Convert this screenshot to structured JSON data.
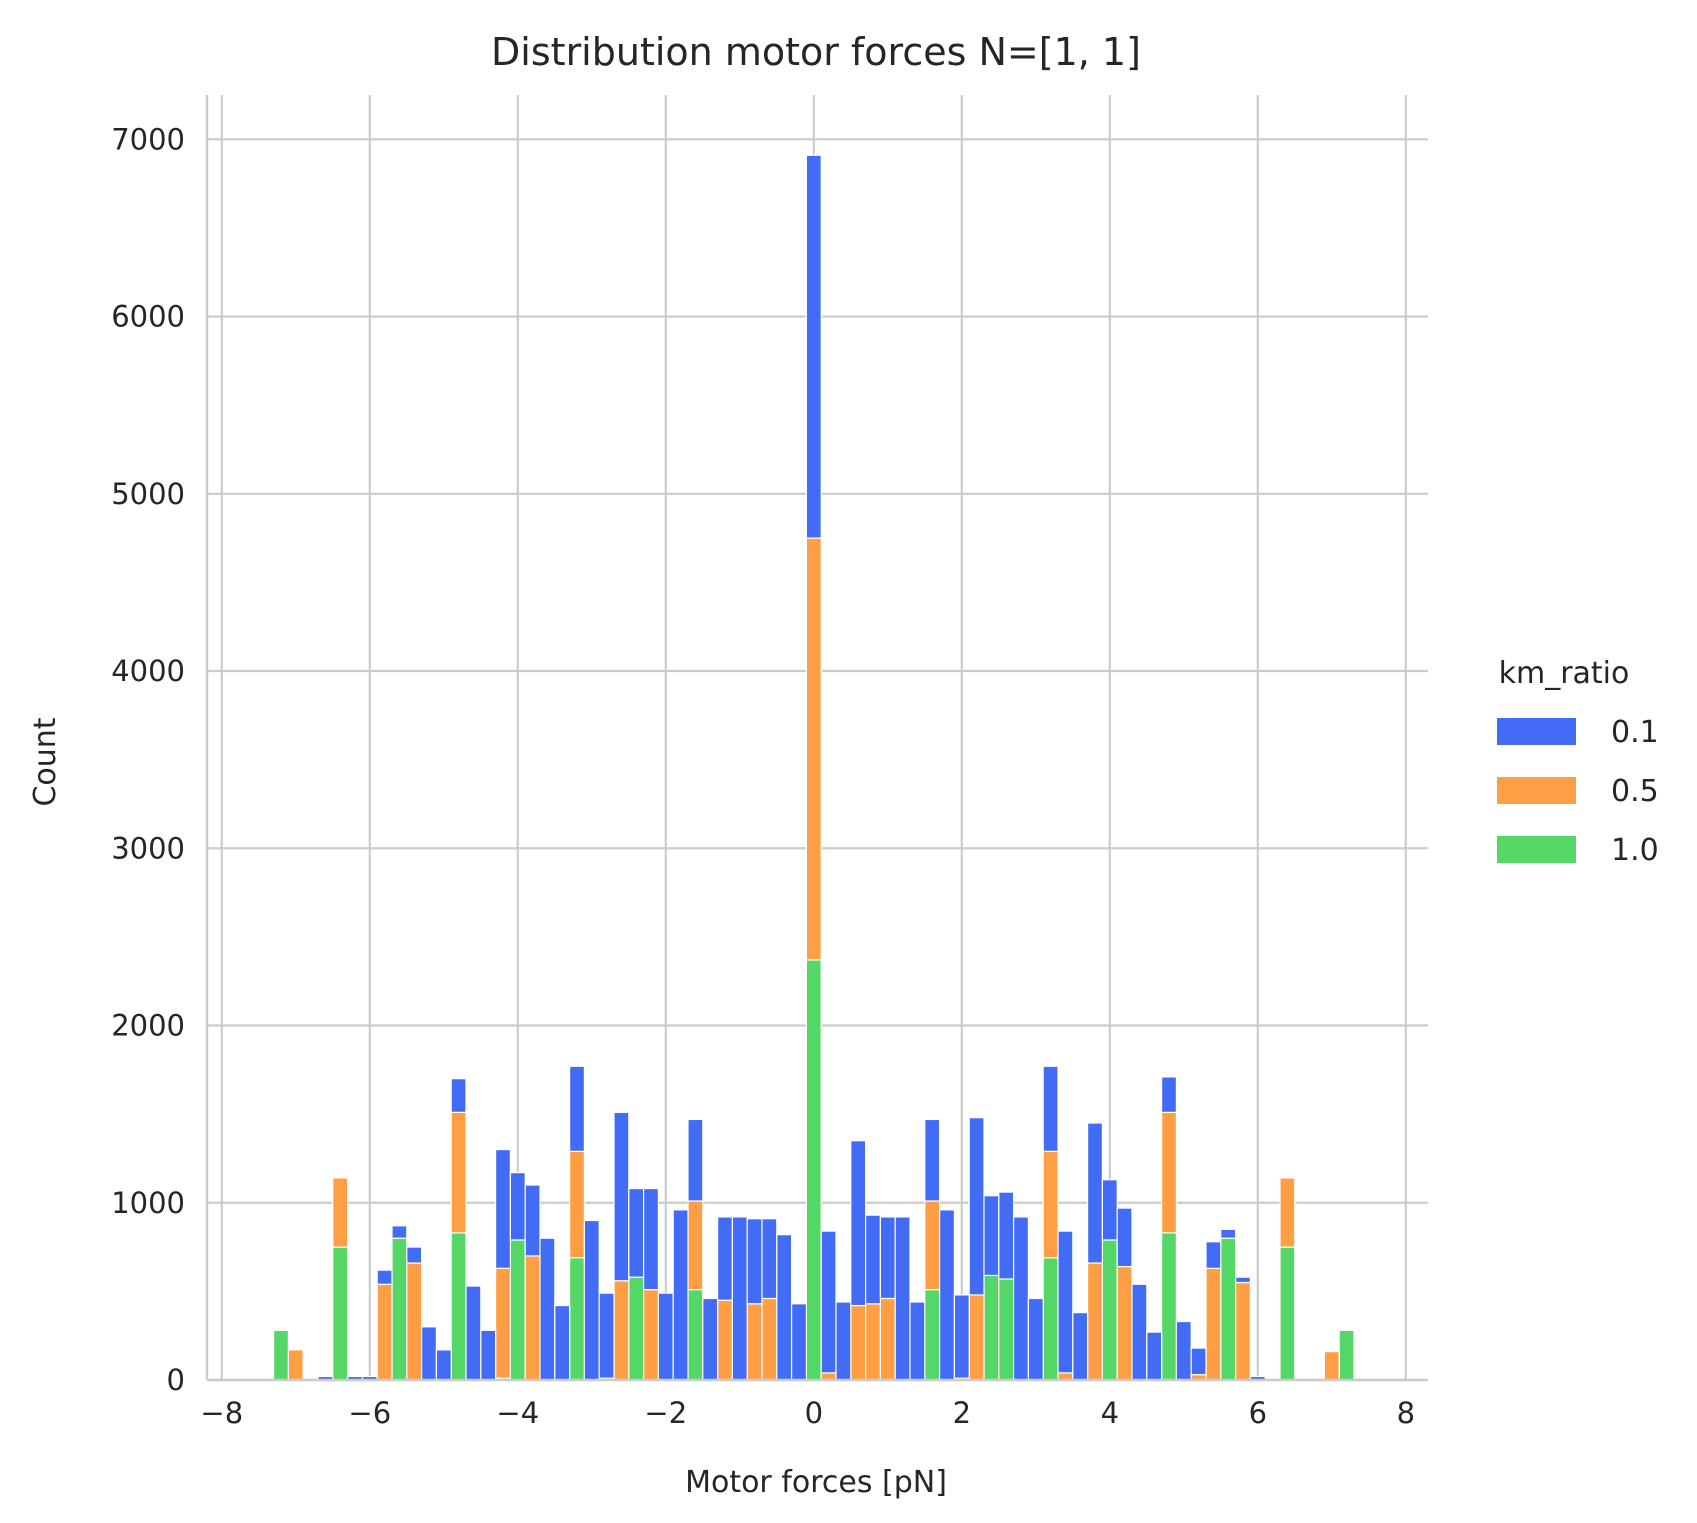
{
  "chart_data": {
    "type": "bar",
    "subtype": "stacked-histogram",
    "title": "Distribution motor forces N=[1, 1]",
    "xlabel": "Motor forces [pN]",
    "ylabel": "Count",
    "xlim": [
      -8.2,
      8.3
    ],
    "ylim": [
      0,
      7250
    ],
    "xticks": [
      -8,
      -6,
      -4,
      -2,
      0,
      2,
      4,
      6,
      8
    ],
    "xtick_labels": [
      "−8",
      "−6",
      "−4",
      "−2",
      "0",
      "2",
      "4",
      "6",
      "8"
    ],
    "yticks": [
      0,
      1000,
      2000,
      3000,
      4000,
      5000,
      6000,
      7000
    ],
    "ytick_labels": [
      "0",
      "1000",
      "2000",
      "3000",
      "4000",
      "5000",
      "6000",
      "7000"
    ],
    "grid": true,
    "legend": {
      "title": "km_ratio",
      "placement": "right"
    },
    "bin_width": 0.2,
    "bin_starts": [
      -7.3,
      -7.1,
      -6.9,
      -6.7,
      -6.5,
      -6.3,
      -6.1,
      -5.9,
      -5.7,
      -5.5,
      -5.3,
      -5.1,
      -4.9,
      -4.7,
      -4.5,
      -4.3,
      -4.1,
      -3.9,
      -3.7,
      -3.5,
      -3.3,
      -3.1,
      -2.9,
      -2.7,
      -2.5,
      -2.3,
      -2.1,
      -1.9,
      -1.7,
      -1.5,
      -1.3,
      -1.1,
      -0.9,
      -0.7,
      -0.5,
      -0.3,
      -0.1,
      0.1,
      0.3,
      0.5,
      0.7,
      0.9,
      1.1,
      1.3,
      1.5,
      1.7,
      1.9,
      2.1,
      2.3,
      2.5,
      2.7,
      2.9,
      3.1,
      3.3,
      3.5,
      3.7,
      3.9,
      4.1,
      4.3,
      4.5,
      4.7,
      4.9,
      5.1,
      5.3,
      5.5,
      5.7,
      5.9,
      6.1,
      6.3,
      6.5,
      6.7,
      6.9,
      7.1
    ],
    "series": [
      {
        "name": "1.0",
        "color": "#55d768",
        "values": [
          280,
          0,
          0,
          0,
          750,
          0,
          0,
          0,
          800,
          0,
          0,
          0,
          830,
          0,
          0,
          10,
          790,
          0,
          0,
          0,
          690,
          0,
          10,
          0,
          580,
          0,
          0,
          0,
          510,
          0,
          0,
          0,
          0,
          0,
          0,
          0,
          2370,
          0,
          0,
          0,
          0,
          0,
          0,
          0,
          510,
          0,
          10,
          0,
          590,
          570,
          0,
          0,
          690,
          0,
          0,
          0,
          790,
          0,
          0,
          0,
          830,
          0,
          0,
          0,
          800,
          0,
          0,
          0,
          750,
          0,
          0,
          0,
          280
        ]
      },
      {
        "name": "0.5",
        "color": "#ff9e45",
        "values": [
          0,
          170,
          0,
          0,
          390,
          0,
          0,
          540,
          0,
          660,
          0,
          0,
          680,
          0,
          0,
          620,
          0,
          700,
          0,
          0,
          600,
          0,
          0,
          560,
          0,
          510,
          0,
          0,
          500,
          0,
          450,
          0,
          430,
          460,
          0,
          0,
          2380,
          40,
          0,
          420,
          430,
          460,
          0,
          0,
          500,
          0,
          0,
          480,
          0,
          0,
          0,
          0,
          600,
          40,
          0,
          660,
          0,
          640,
          0,
          0,
          680,
          0,
          30,
          630,
          0,
          550,
          0,
          0,
          390,
          0,
          10,
          160,
          0
        ]
      },
      {
        "name": "0.1",
        "color": "#426cf6",
        "values": [
          0,
          0,
          0,
          20,
          0,
          20,
          20,
          80,
          70,
          90,
          300,
          170,
          190,
          530,
          280,
          670,
          380,
          400,
          800,
          420,
          480,
          900,
          480,
          950,
          500,
          570,
          490,
          960,
          460,
          460,
          470,
          920,
          480,
          450,
          820,
          430,
          2160,
          800,
          440,
          930,
          500,
          460,
          920,
          440,
          460,
          960,
          470,
          1000,
          450,
          490,
          920,
          460,
          480,
          800,
          380,
          790,
          340,
          330,
          540,
          270,
          200,
          330,
          150,
          150,
          50,
          30,
          20,
          0,
          0,
          0,
          0,
          0,
          0
        ]
      }
    ]
  }
}
